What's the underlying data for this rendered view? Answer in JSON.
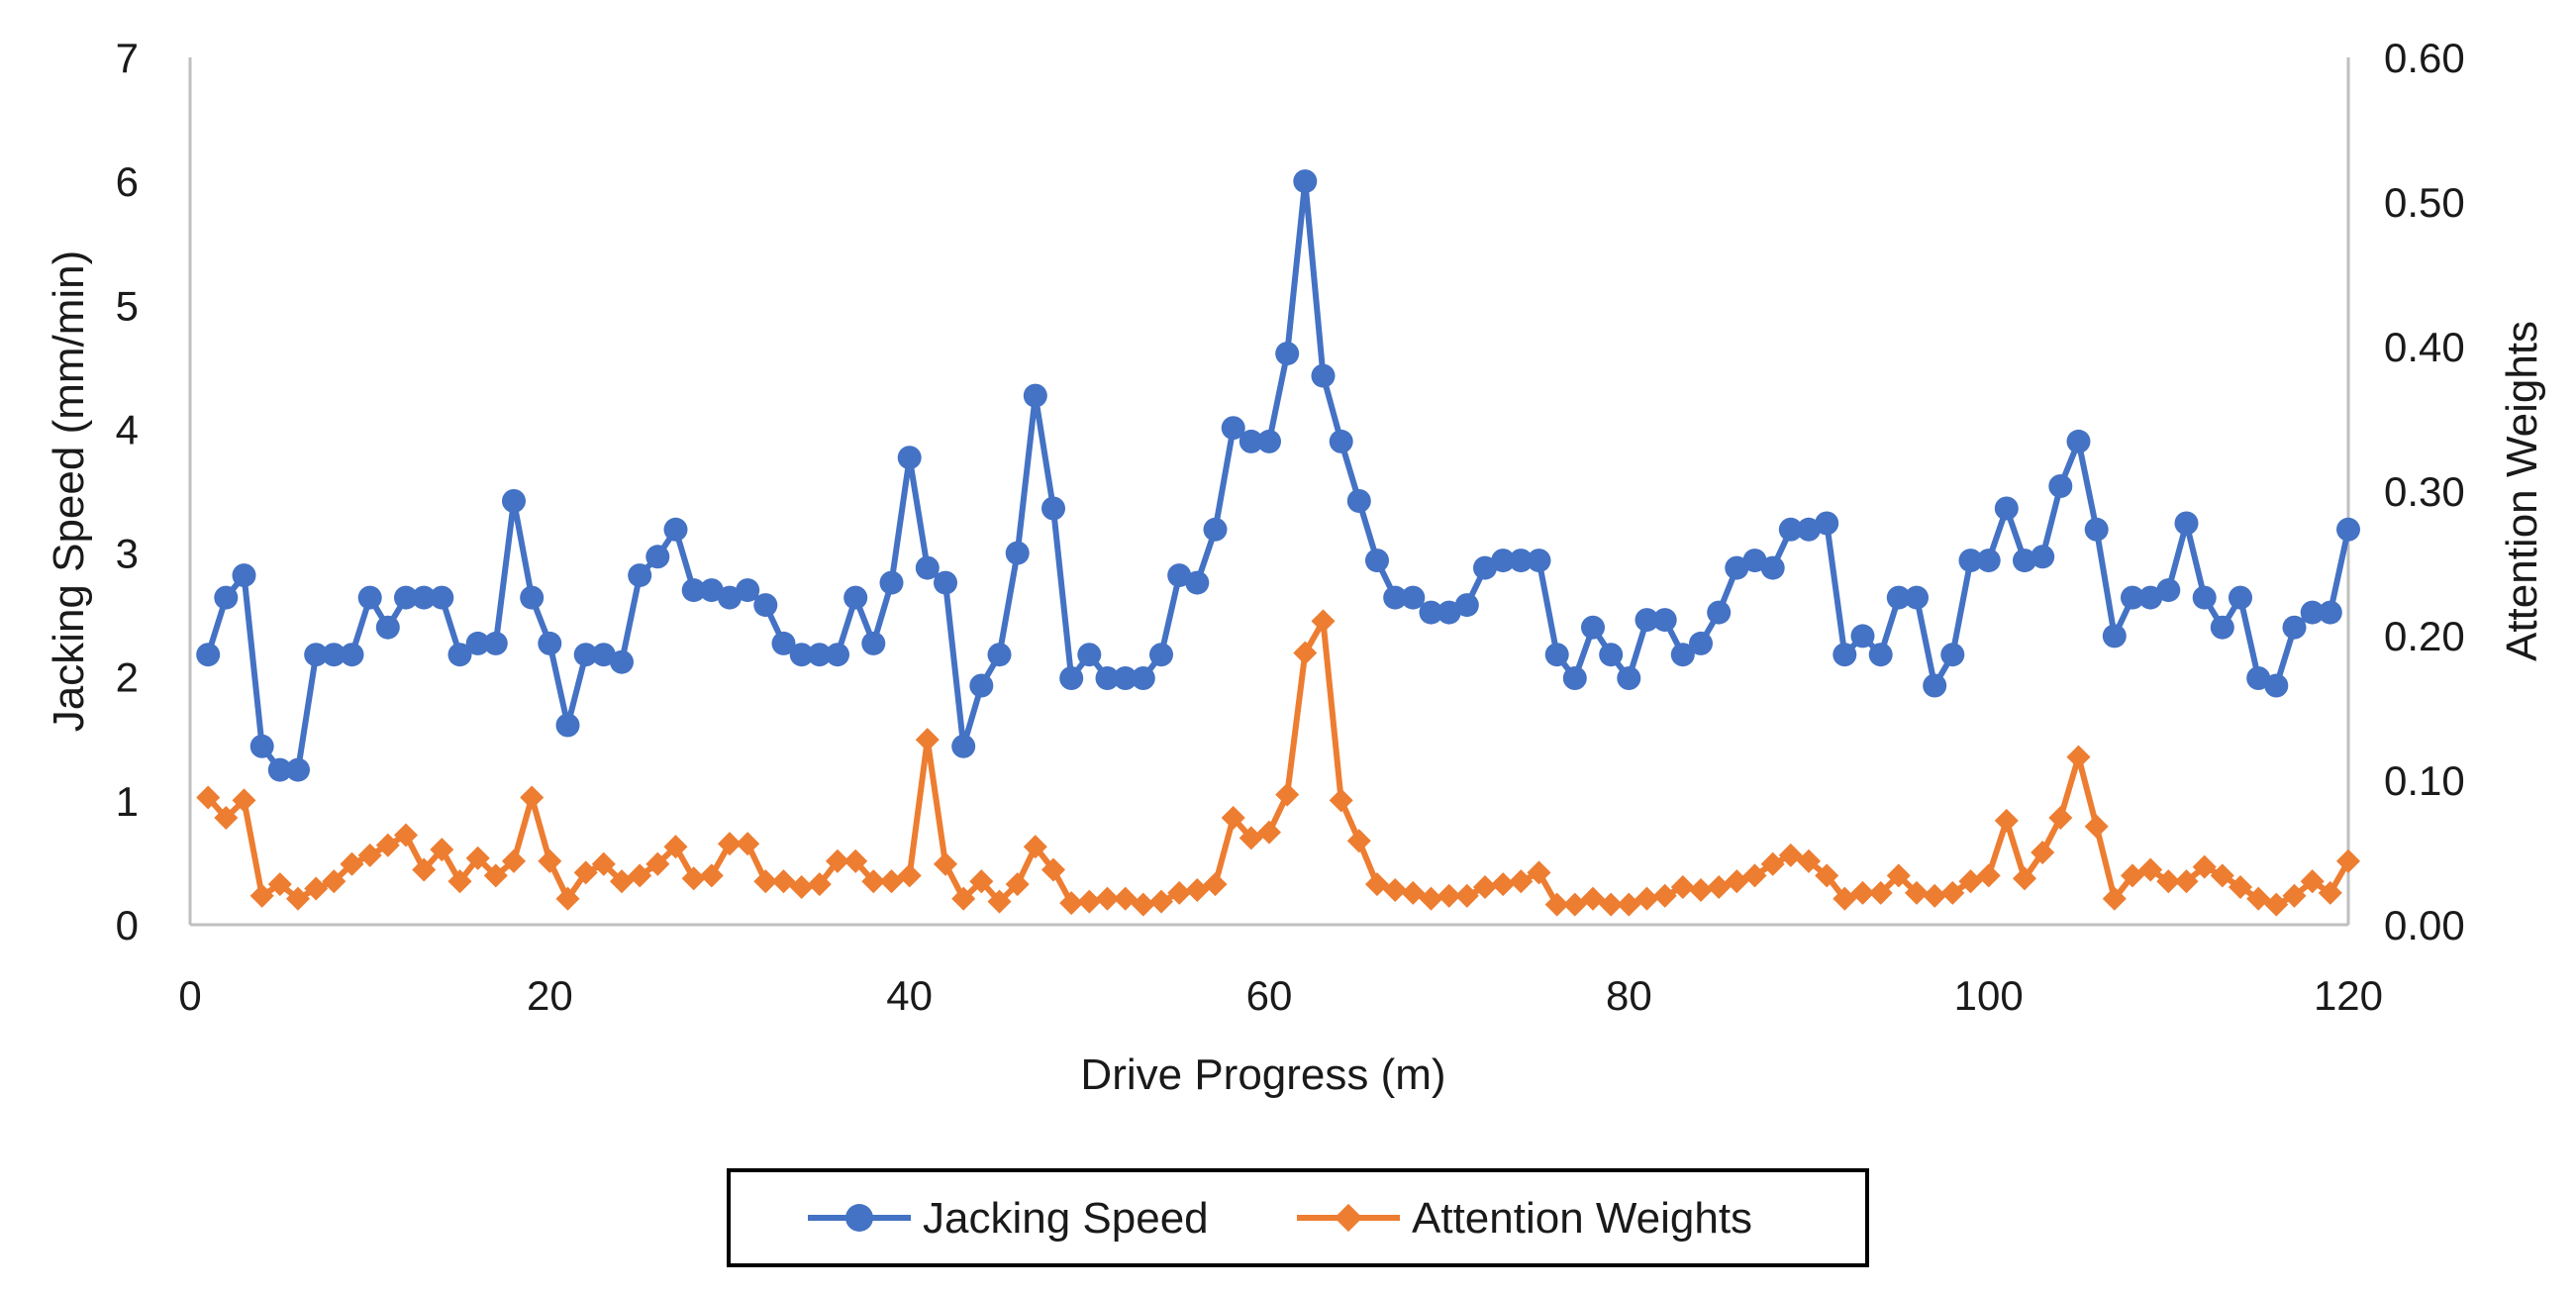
{
  "chart_data": {
    "type": "line",
    "title": "",
    "xlabel": "Drive Progress (m)",
    "ylabel": "Jacking Speed (mm/min)",
    "y2label": "Attention Weights",
    "xlim": [
      0,
      120
    ],
    "ylim": [
      0,
      7
    ],
    "y2lim": [
      0,
      0.6
    ],
    "x_ticks": [
      "0",
      "20",
      "40",
      "60",
      "80",
      "100",
      "120"
    ],
    "y_ticks": [
      "0",
      "1",
      "2",
      "3",
      "4",
      "5",
      "6",
      "7"
    ],
    "y2_ticks": [
      "0.00",
      "0.10",
      "0.20",
      "0.30",
      "0.40",
      "0.50",
      "0.60"
    ],
    "grid": false,
    "legend_position": "bottom",
    "series": [
      {
        "name": "Jacking Speed",
        "axis": "left",
        "color": "#4472c4",
        "marker": "circle",
        "x": [
          1,
          2,
          3,
          4,
          5,
          6,
          7,
          8,
          9,
          10,
          11,
          12,
          13,
          14,
          15,
          16,
          17,
          18,
          19,
          20,
          21,
          22,
          23,
          24,
          25,
          26,
          27,
          28,
          29,
          30,
          31,
          32,
          33,
          34,
          35,
          36,
          37,
          38,
          39,
          40,
          41,
          42,
          43,
          44,
          45,
          46,
          47,
          48,
          49,
          50,
          51,
          52,
          53,
          54,
          55,
          56,
          57,
          58,
          59,
          60,
          61,
          62,
          63,
          64,
          65,
          66,
          67,
          68,
          69,
          70,
          71,
          72,
          73,
          74,
          75,
          76,
          77,
          78,
          79,
          80,
          81,
          82,
          83,
          84,
          85,
          86,
          87,
          88,
          89,
          90,
          91,
          92,
          93,
          94,
          95,
          96,
          97,
          98,
          99,
          100,
          101,
          102,
          103,
          104,
          105,
          106,
          107,
          108,
          109,
          110,
          111,
          112,
          113,
          114,
          115,
          116,
          117,
          118,
          119,
          120
        ],
        "values": [
          2.18,
          2.64,
          2.82,
          1.44,
          1.25,
          1.25,
          2.18,
          2.18,
          2.18,
          2.64,
          2.4,
          2.64,
          2.64,
          2.64,
          2.18,
          2.27,
          2.27,
          3.42,
          2.64,
          2.27,
          1.61,
          2.18,
          2.18,
          2.12,
          2.82,
          2.97,
          3.19,
          2.7,
          2.7,
          2.64,
          2.7,
          2.58,
          2.27,
          2.18,
          2.18,
          2.18,
          2.64,
          2.27,
          2.76,
          3.77,
          2.88,
          2.76,
          1.44,
          1.93,
          2.18,
          3.0,
          4.27,
          3.36,
          1.99,
          2.18,
          1.99,
          1.99,
          1.99,
          2.18,
          2.82,
          2.76,
          3.19,
          4.01,
          3.9,
          3.9,
          4.61,
          6.0,
          4.43,
          3.9,
          3.42,
          2.94,
          2.64,
          2.64,
          2.52,
          2.52,
          2.58,
          2.88,
          2.94,
          2.94,
          2.94,
          2.18,
          1.99,
          2.4,
          2.18,
          1.99,
          2.46,
          2.46,
          2.18,
          2.27,
          2.52,
          2.88,
          2.94,
          2.88,
          3.19,
          3.19,
          3.24,
          2.18,
          2.33,
          2.18,
          2.64,
          2.64,
          1.93,
          2.18,
          2.94,
          2.94,
          3.36,
          2.94,
          2.97,
          3.54,
          3.9,
          3.19,
          2.33,
          2.64,
          2.64,
          2.7,
          3.24,
          2.64,
          2.4,
          2.64,
          1.99,
          1.93,
          2.4,
          2.52,
          2.52,
          3.19
        ]
      },
      {
        "name": "Attention Weights",
        "axis": "right",
        "color": "#ed7d31",
        "marker": "diamond",
        "x": [
          1,
          2,
          3,
          4,
          5,
          6,
          7,
          8,
          9,
          10,
          11,
          12,
          13,
          14,
          15,
          16,
          17,
          18,
          19,
          20,
          21,
          22,
          23,
          24,
          25,
          26,
          27,
          28,
          29,
          30,
          31,
          32,
          33,
          34,
          35,
          36,
          37,
          38,
          39,
          40,
          41,
          42,
          43,
          44,
          45,
          46,
          47,
          48,
          49,
          50,
          51,
          52,
          53,
          54,
          55,
          56,
          57,
          58,
          59,
          60,
          61,
          62,
          63,
          64,
          65,
          66,
          67,
          68,
          69,
          70,
          71,
          72,
          73,
          74,
          75,
          76,
          77,
          78,
          79,
          80,
          81,
          82,
          83,
          84,
          85,
          86,
          87,
          88,
          89,
          90,
          91,
          92,
          93,
          94,
          95,
          96,
          97,
          98,
          99,
          100,
          101,
          102,
          103,
          104,
          105,
          106,
          107,
          108,
          109,
          110,
          111,
          112,
          113,
          114,
          115,
          116,
          117,
          118,
          119,
          120
        ],
        "values": [
          0.088,
          0.074,
          0.086,
          0.02,
          0.028,
          0.018,
          0.025,
          0.03,
          0.042,
          0.048,
          0.055,
          0.062,
          0.038,
          0.052,
          0.03,
          0.046,
          0.034,
          0.044,
          0.088,
          0.044,
          0.018,
          0.036,
          0.042,
          0.03,
          0.034,
          0.042,
          0.054,
          0.032,
          0.034,
          0.056,
          0.056,
          0.03,
          0.03,
          0.026,
          0.028,
          0.044,
          0.044,
          0.03,
          0.03,
          0.034,
          0.128,
          0.042,
          0.018,
          0.03,
          0.016,
          0.028,
          0.054,
          0.038,
          0.015,
          0.016,
          0.018,
          0.018,
          0.014,
          0.016,
          0.022,
          0.024,
          0.028,
          0.074,
          0.06,
          0.064,
          0.09,
          0.188,
          0.21,
          0.086,
          0.058,
          0.028,
          0.024,
          0.022,
          0.018,
          0.02,
          0.02,
          0.026,
          0.028,
          0.03,
          0.036,
          0.014,
          0.014,
          0.018,
          0.014,
          0.014,
          0.018,
          0.02,
          0.026,
          0.024,
          0.026,
          0.03,
          0.034,
          0.042,
          0.048,
          0.044,
          0.034,
          0.018,
          0.022,
          0.022,
          0.034,
          0.022,
          0.02,
          0.022,
          0.03,
          0.034,
          0.072,
          0.032,
          0.05,
          0.074,
          0.116,
          0.068,
          0.018,
          0.034,
          0.038,
          0.03,
          0.03,
          0.04,
          0.034,
          0.026,
          0.018,
          0.014,
          0.02,
          0.03,
          0.022,
          0.044
        ]
      }
    ]
  }
}
